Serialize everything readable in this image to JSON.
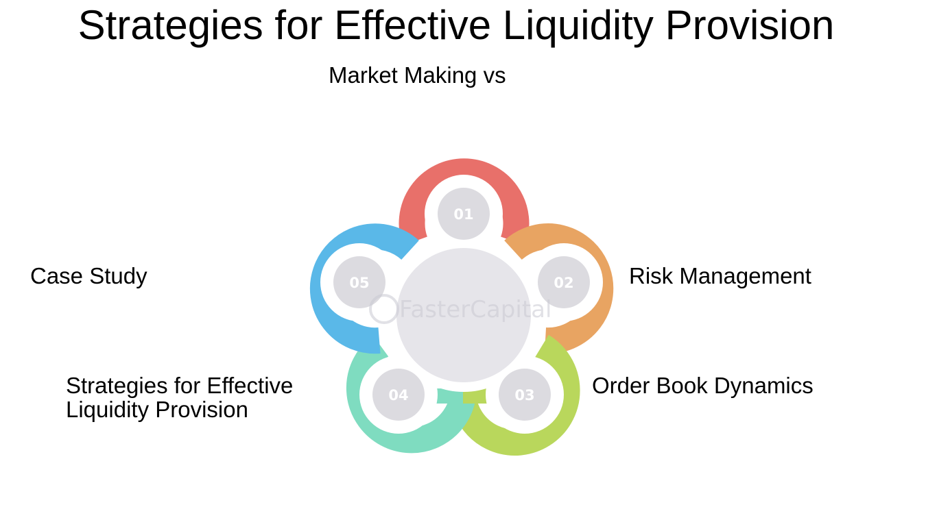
{
  "title": "Strategies for Effective Liquidity Provision",
  "watermark": "FasterCapital",
  "steps": [
    {
      "number": "01",
      "label": "Market Making vs",
      "color": "#e8706a"
    },
    {
      "number": "02",
      "label": "Risk Management",
      "color": "#e8a462"
    },
    {
      "number": "03",
      "label": "Order Book Dynamics",
      "color": "#b9d75c"
    },
    {
      "number": "04",
      "label": "Strategies for Effective Liquidity Provision",
      "color": "#7fdcc0"
    },
    {
      "number": "05",
      "label": "Case Study",
      "color": "#5ab8e8"
    }
  ]
}
